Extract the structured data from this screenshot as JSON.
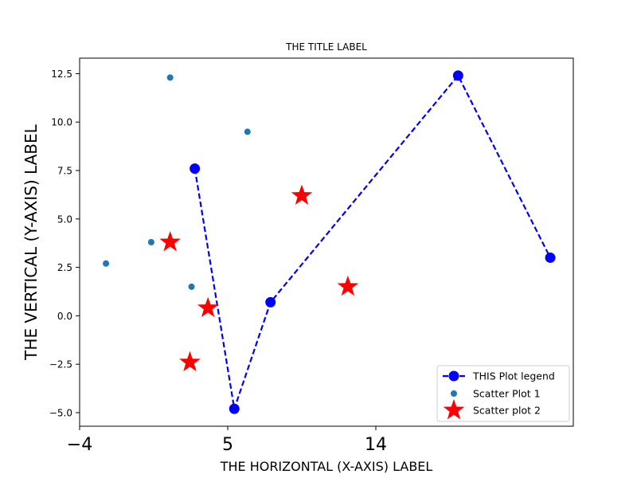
{
  "chart_data": {
    "type": "scatter",
    "title": "THE TITLE LABEL",
    "xlabel": "THE HORIZONTAL (X-AXIS) LABEL",
    "ylabel": "THE VERTICAL (Y-AXIS) LABEL",
    "xlim": [
      -4,
      26
    ],
    "ylim": [
      -5.7,
      13.3
    ],
    "xticks": [
      -4,
      5,
      14
    ],
    "xtick_labels": [
      "−4",
      "5",
      "14"
    ],
    "yticks": [
      -5.0,
      -2.5,
      0.0,
      2.5,
      5.0,
      7.5,
      10.0,
      12.5
    ],
    "ytick_labels": [
      "−5.0",
      "−2.5",
      "0.0",
      "2.5",
      "5.0",
      "7.5",
      "10.0",
      "12.5"
    ],
    "grid": false,
    "legend_position": "lower-right",
    "series": [
      {
        "name": "THIS Plot legend",
        "kind": "line",
        "color": "#0000ff",
        "linestyle": "dashed",
        "marker": "circle",
        "x": [
          3.0,
          5.4,
          7.6,
          19.0,
          24.6
        ],
        "y": [
          7.6,
          -4.8,
          0.7,
          12.4,
          3.0
        ]
      },
      {
        "name": "Scatter Plot 1",
        "kind": "scatter",
        "color": "#1f77b4",
        "marker": "circle",
        "x": [
          -2.4,
          0.35,
          1.5,
          2.8,
          6.2
        ],
        "y": [
          2.7,
          3.8,
          12.3,
          1.5,
          9.5
        ]
      },
      {
        "name": "Scatter plot 2",
        "kind": "scatter",
        "color": "#ff0000",
        "marker": "star",
        "x": [
          1.5,
          2.7,
          3.8,
          9.5,
          12.3
        ],
        "y": [
          3.8,
          -2.4,
          0.4,
          6.2,
          1.5
        ]
      }
    ]
  }
}
